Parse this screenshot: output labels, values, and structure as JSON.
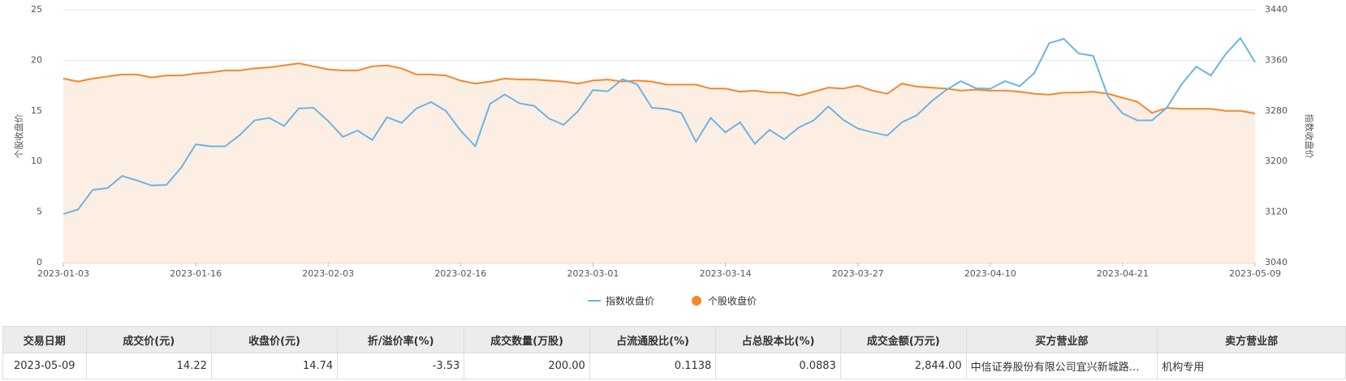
{
  "chart_data": {
    "type": "line",
    "y_label": "个股收盘价",
    "y2_label": "指数收盘价",
    "categories": [
      "2023-01-03",
      null,
      null,
      null,
      null,
      null,
      null,
      null,
      null,
      "2023-01-16",
      null,
      null,
      null,
      null,
      null,
      null,
      null,
      null,
      "2023-02-03",
      null,
      null,
      null,
      null,
      null,
      null,
      null,
      null,
      "2023-02-16",
      null,
      null,
      null,
      null,
      null,
      null,
      null,
      null,
      "2023-03-01",
      null,
      null,
      null,
      null,
      null,
      null,
      null,
      null,
      "2023-03-14",
      null,
      null,
      null,
      null,
      null,
      null,
      null,
      null,
      "2023-03-27",
      null,
      null,
      null,
      null,
      null,
      null,
      null,
      null,
      "2023-04-10",
      null,
      null,
      null,
      null,
      null,
      null,
      null,
      null,
      "2023-04-21",
      null,
      null,
      null,
      null,
      null,
      null,
      null,
      null,
      "2023-05-09"
    ],
    "series": [
      {
        "name": "指数收盘价",
        "color": "#6cb4e4",
        "axis": "y2",
        "values": [
          3117,
          3124,
          3155,
          3158,
          3177,
          3170,
          3162,
          3163,
          3190,
          3227,
          3224,
          3224,
          3242,
          3265,
          3269,
          3256,
          3284,
          3285,
          3264,
          3239,
          3249,
          3234,
          3270,
          3261,
          3284,
          3294,
          3280,
          3249,
          3224,
          3291,
          3306,
          3292,
          3288,
          3268,
          3258,
          3280,
          3313,
          3311,
          3330,
          3322,
          3285,
          3283,
          3277,
          3231,
          3269,
          3246,
          3262,
          3228,
          3250,
          3235,
          3254,
          3265,
          3287,
          3266,
          3252,
          3246,
          3241,
          3262,
          3273,
          3295,
          3313,
          3327,
          3316,
          3315,
          3327,
          3319,
          3340,
          3387,
          3394,
          3371,
          3367,
          3303,
          3276,
          3265,
          3265,
          3285,
          3322,
          3350,
          3336,
          3370,
          3395,
          3357
        ]
      },
      {
        "name": "个股收盘价",
        "color": "#f5872b",
        "area_color": "#fdeee3",
        "values": [
          18.2,
          17.9,
          18.2,
          18.4,
          18.6,
          18.6,
          18.3,
          18.5,
          18.5,
          18.7,
          18.8,
          19.0,
          19.0,
          19.2,
          19.3,
          19.5,
          19.7,
          19.4,
          19.1,
          19.0,
          19.0,
          19.4,
          19.5,
          19.2,
          18.6,
          18.6,
          18.5,
          18.0,
          17.7,
          17.9,
          18.2,
          18.1,
          18.1,
          18.0,
          17.9,
          17.7,
          18.0,
          18.1,
          17.9,
          18.0,
          17.9,
          17.6,
          17.6,
          17.6,
          17.2,
          17.2,
          16.9,
          17.0,
          16.8,
          16.8,
          16.5,
          16.9,
          17.3,
          17.2,
          17.5,
          17.0,
          16.7,
          17.7,
          17.4,
          17.3,
          17.2,
          17.0,
          17.1,
          17.0,
          17.0,
          16.9,
          16.7,
          16.6,
          16.8,
          16.8,
          16.9,
          16.7,
          16.3,
          15.9,
          14.8,
          15.3,
          15.2,
          15.2,
          15.2,
          15.0,
          15.0,
          14.74
        ]
      }
    ],
    "ylim": [
      0,
      25
    ],
    "yticks": [
      0,
      5,
      10,
      15,
      20,
      25
    ],
    "y2lim": [
      3040,
      3440
    ],
    "y2ticks": [
      3040,
      3120,
      3200,
      3280,
      3360,
      3440
    ],
    "grid": true,
    "legend": "bottom"
  },
  "table": {
    "columns": [
      "交易日期",
      "成交价(元)",
      "收盘价(元)",
      "折/溢价率(%)",
      "成交数量(万股)",
      "占流通股比(%)",
      "占总股本比(%)",
      "成交金额(万元)",
      "买方营业部",
      "卖方营业部"
    ],
    "rows": [
      [
        "2023-05-09",
        "14.22",
        "14.74",
        "-3.53",
        "200.00",
        "0.1138",
        "0.0883",
        "2,844.00",
        "中信证券股份有限公司宜兴新城路…",
        "机构专用"
      ]
    ]
  }
}
